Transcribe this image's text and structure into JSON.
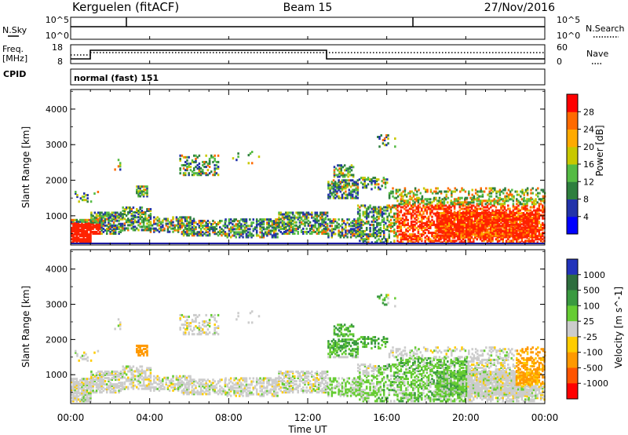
{
  "header": {
    "station": "Kerguelen (fitACF)",
    "beam": "Beam 15",
    "date": "27/Nov/2016"
  },
  "top_panels": {
    "nsky_label": "N.Sky",
    "nsearch_label": "N.Search",
    "nsky_ticks": [
      "10^5",
      "10^0"
    ],
    "nsearch_ticks": [
      "10^5",
      "10^0"
    ],
    "freq_label_1": "Freq.",
    "freq_label_2": "[MHz]",
    "freq_ticks": [
      "18",
      "8"
    ],
    "nave_label": "Nave",
    "nave_ticks": [
      "60",
      "0"
    ],
    "cpid_label": "CPID",
    "cpid_text": "normal (fast) 151"
  },
  "chart_data": [
    {
      "type": "heatmap",
      "name": "power",
      "ylabel": "Slant Range [km]",
      "y_ticks": [
        "1000",
        "2000",
        "3000",
        "4000"
      ],
      "ylim": [
        180,
        4550
      ],
      "colorbar_label": "Power [dB]",
      "colorbar_ticks": [
        "28",
        "24",
        "20",
        "16",
        "12",
        "8",
        "4"
      ],
      "colorbar_colors": [
        "#0000ff",
        "#2233aa",
        "#2e7f3e",
        "#55bb44",
        "#c8c800",
        "#ffaa00",
        "#ff6a00",
        "#ff0000"
      ]
    },
    {
      "type": "heatmap",
      "name": "velocity",
      "ylabel": "Slant Range [km]",
      "y_ticks": [
        "1000",
        "2000",
        "3000",
        "4000"
      ],
      "ylim": [
        180,
        4550
      ],
      "colorbar_label": "Velocity [m s^-1]",
      "colorbar_ticks": [
        "1000",
        "500",
        "100",
        "25",
        "-25",
        "-100",
        "-500",
        "-1000"
      ],
      "colorbar_colors": [
        "#2233bb",
        "#2e6e3e",
        "#3a9a40",
        "#66cc33",
        "#cccccc",
        "#ffcc00",
        "#ff9900",
        "#ff5500",
        "#ff0000"
      ]
    }
  ],
  "x_axis": {
    "ticks": [
      "00:00",
      "04:00",
      "08:00",
      "12:00",
      "16:00",
      "20:00",
      "00:00"
    ],
    "label": "Time UT"
  }
}
